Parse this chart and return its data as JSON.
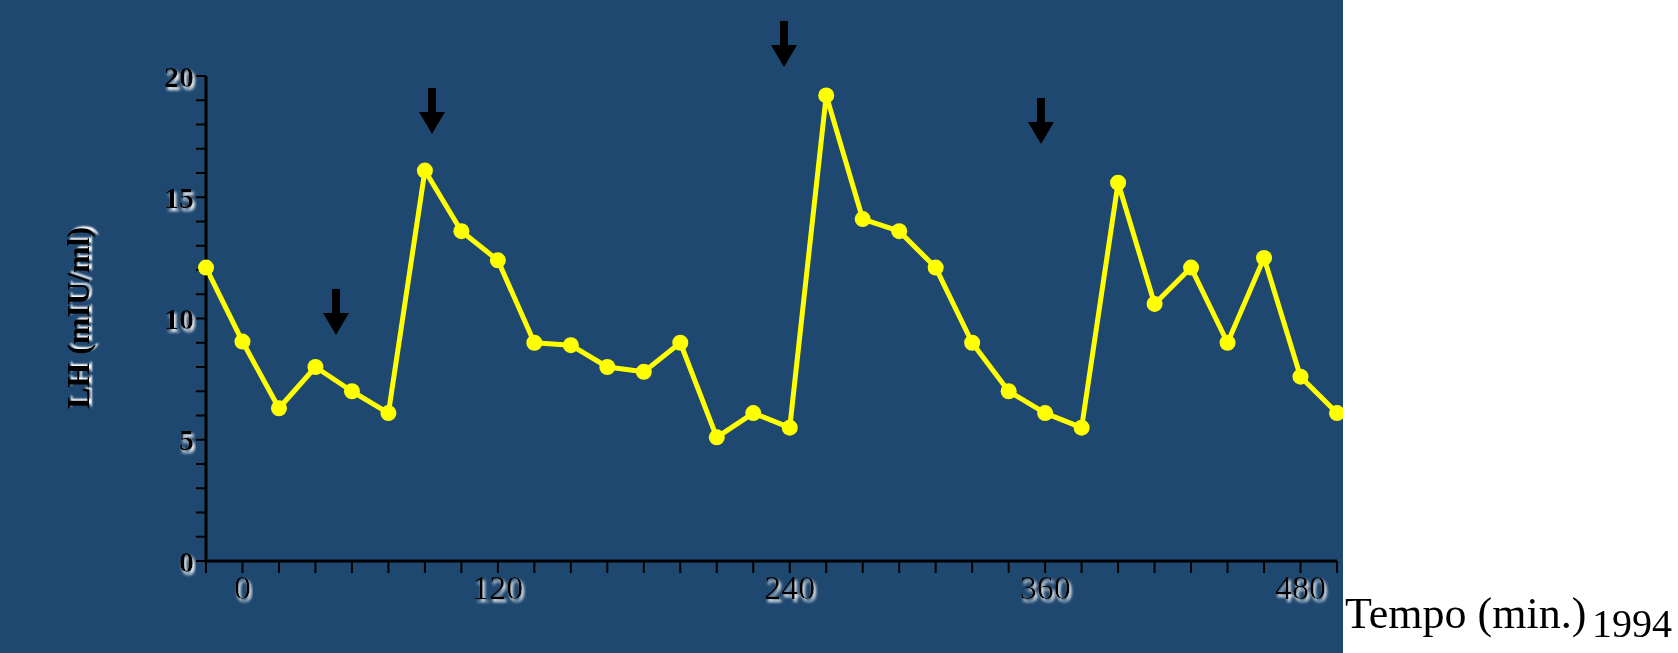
{
  "chart_data": {
    "type": "line",
    "ylabel": "LH (mIU/ml)",
    "xlabel": "Tempo (min.)",
    "categories": [
      null,
      "0",
      null,
      null,
      null,
      null,
      null,
      null,
      "120",
      null,
      null,
      null,
      null,
      null,
      null,
      null,
      "240",
      null,
      null,
      null,
      null,
      null,
      null,
      "360",
      null,
      null,
      null,
      null,
      null,
      null,
      "480",
      null
    ],
    "series": [
      {
        "color": "#ffff00",
        "values": [
          12.1,
          9.05,
          6.3,
          8.0,
          7.0,
          6.1,
          16.1,
          13.6,
          12.4,
          9.0,
          8.9,
          8.0,
          7.8,
          9.0,
          5.1,
          6.1,
          5.5,
          19.2,
          14.1,
          13.6,
          12.1,
          9.0,
          7.0,
          6.1,
          5.5,
          15.6,
          10.6,
          12.1,
          9.0,
          12.5,
          7.6,
          6.1
        ]
      }
    ],
    "ylim": [
      0,
      20
    ],
    "yticks": [
      0,
      {
        "value": 1,
        "label": null
      },
      {
        "value": 2,
        "label": null
      },
      {
        "value": 3,
        "label": null
      },
      {
        "value": 4,
        "label": null
      },
      5,
      {
        "value": 6,
        "label": null
      },
      {
        "value": 7,
        "label": null
      },
      {
        "value": 8,
        "label": null
      },
      {
        "value": 9,
        "label": null
      },
      10,
      {
        "value": 11,
        "label": null
      },
      {
        "value": 12,
        "label": null
      },
      {
        "value": 13,
        "label": null
      },
      {
        "value": 14,
        "label": null
      },
      15,
      {
        "value": 16,
        "label": null
      },
      {
        "value": 17,
        "label": null
      },
      {
        "value": 18,
        "label": null
      },
      {
        "value": 19,
        "label": null
      },
      20
    ],
    "marker": "circle",
    "line_style": "solid",
    "grid": false,
    "legend": false,
    "annotations": [
      "1994"
    ]
  }
}
